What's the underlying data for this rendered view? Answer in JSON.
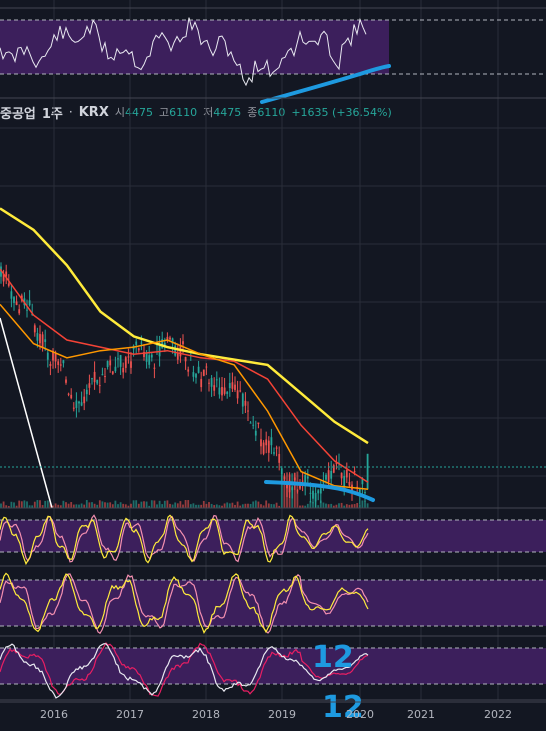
{
  "legend": {
    "symbol": "중공업",
    "interval": "1주",
    "exchange": "KRX",
    "ohlc": [
      {
        "label": "시",
        "value": "4475"
      },
      {
        "label": "고",
        "value": "6110"
      },
      {
        "label": "저",
        "value": "4475"
      },
      {
        "label": "종",
        "value": "6110"
      }
    ],
    "change": "+1635 (+36.54%)"
  },
  "colors": {
    "background": "#131722",
    "grid": "#2a2e39",
    "up": "#26a69a",
    "down": "#ef5350",
    "ma_short": "#ff9800",
    "ma_mid": "#f44336",
    "ma_long": "#ffeb3b",
    "osc_band": "#3c1f5c",
    "annotation": "#1e9ae0"
  },
  "chart_data": {
    "type": "line",
    "x_ticks": [
      "2016",
      "2017",
      "2018",
      "2019",
      "2020",
      "2021",
      "2022"
    ],
    "annotations": [
      "12",
      "12"
    ],
    "price_series": [
      {
        "key": "ma_long",
        "values": [
          11200,
          10600,
          9600,
          8300,
          7600,
          7300,
          7100,
          6950,
          6800,
          6000,
          5200,
          4600
        ]
      },
      {
        "key": "ma_mid",
        "values": [
          9500,
          8200,
          7500,
          7300,
          7100,
          7200,
          7000,
          6900,
          6400,
          5100,
          4100,
          3500
        ]
      },
      {
        "key": "ma_short",
        "values": [
          8500,
          7400,
          7000,
          7200,
          7300,
          7500,
          7100,
          6800,
          5500,
          3800,
          3400,
          3300
        ]
      }
    ],
    "oscillators": [
      {
        "key": "osc1",
        "band": [
          30,
          70
        ]
      },
      {
        "key": "osc2",
        "band": [
          20,
          80
        ]
      },
      {
        "key": "osc3",
        "band": [
          20,
          80
        ]
      }
    ]
  }
}
